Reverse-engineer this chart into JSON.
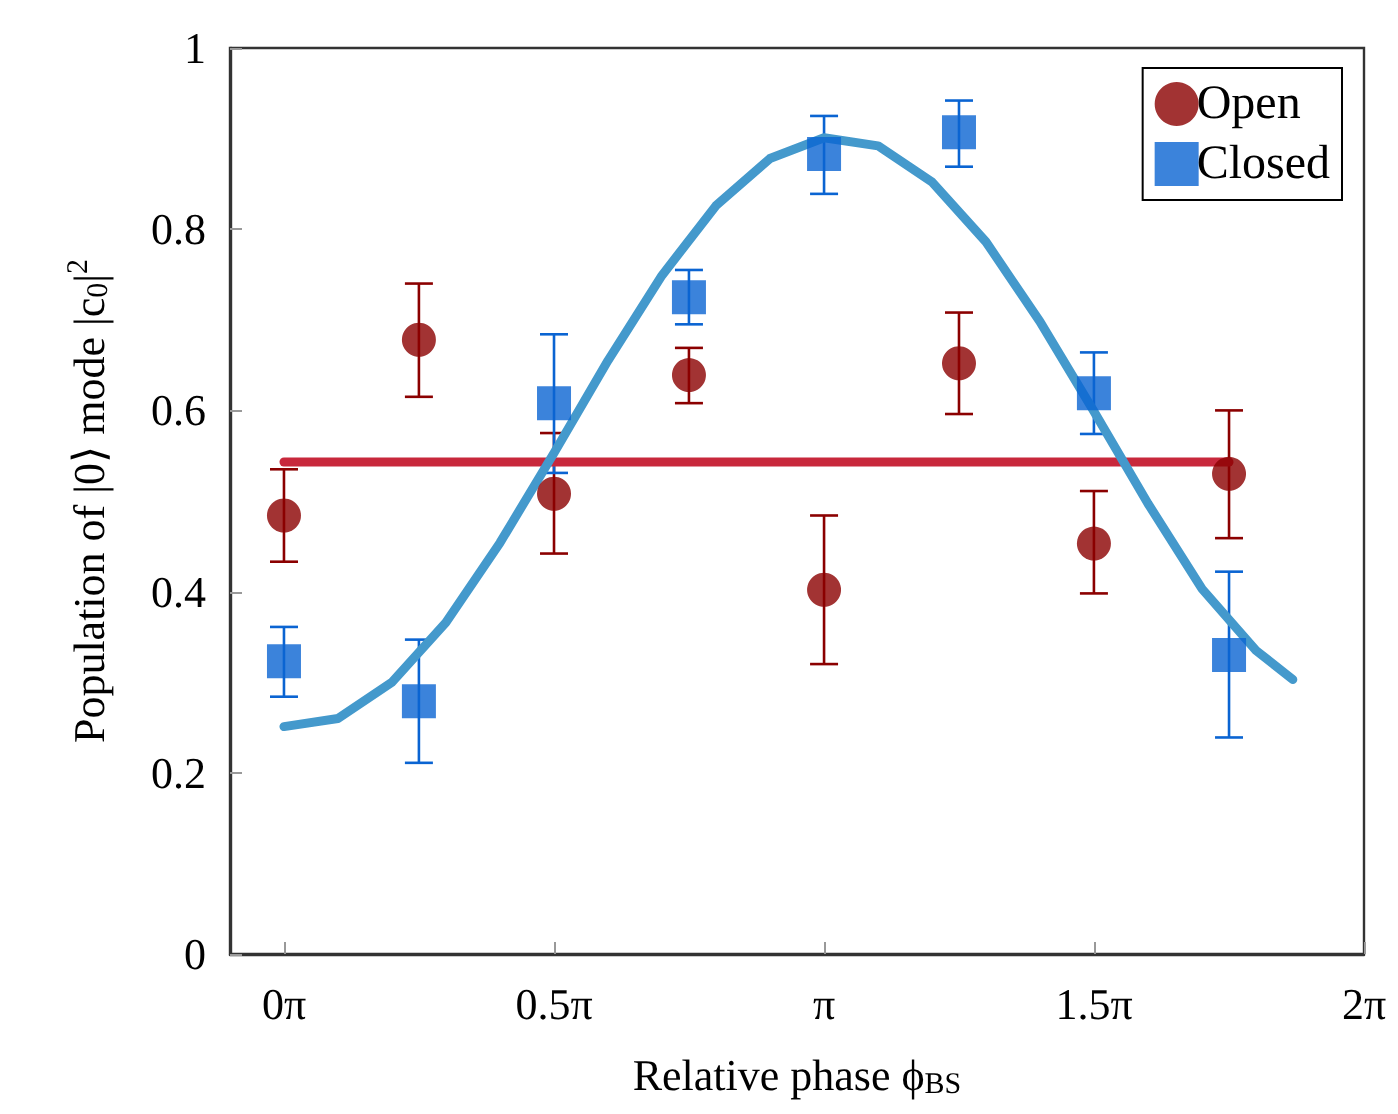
{
  "chart_data": {
    "type": "scatter",
    "xlabel": "Relative phase ϕ$_{BS}$",
    "ylabel": "Population of |0⟩ mode |c$_{0}$|$^{2}$",
    "x": [
      0,
      0.785,
      1.571,
      2.356,
      3.142,
      3.927,
      4.712,
      5.498
    ],
    "xlim": [
      -0.314,
      6.2832
    ],
    "xticks": [
      {
        "value": 0,
        "label": "0π"
      },
      {
        "value": 1.5708,
        "label": "0.5π"
      },
      {
        "value": 3.1416,
        "label": "π"
      },
      {
        "value": 4.7124,
        "label": "1.5π"
      },
      {
        "value": 6.2832,
        "label": "2π"
      }
    ],
    "ylim": [
      0,
      1
    ],
    "yticks": [
      0,
      0.2,
      0.4,
      0.6,
      0.8,
      1
    ],
    "grid": false,
    "legend": "top right",
    "series": [
      {
        "name": "Open",
        "color": "#8b0000",
        "marker": "circle",
        "values": [
          0.484,
          0.678,
          0.508,
          0.639,
          0.402,
          0.652,
          0.453,
          0.53
        ],
        "errors": [
          [
            0.433,
            0.535
          ],
          [
            0.615,
            0.74
          ],
          [
            0.442,
            0.575
          ],
          [
            0.608,
            0.669
          ],
          [
            0.32,
            0.484
          ],
          [
            0.596,
            0.708
          ],
          [
            0.398,
            0.511
          ],
          [
            0.459,
            0.6
          ]
        ]
      },
      {
        "name": "Closed",
        "color": "#0a64d2",
        "marker": "square",
        "values": [
          0.323,
          0.279,
          0.608,
          0.725,
          0.883,
          0.907,
          0.619,
          0.33
        ],
        "errors": [
          [
            0.284,
            0.361
          ],
          [
            0.211,
            0.347
          ],
          [
            0.531,
            0.684
          ],
          [
            0.695,
            0.755
          ],
          [
            0.839,
            0.925
          ],
          [
            0.869,
            0.942
          ],
          [
            0.574,
            0.664
          ],
          [
            0.239,
            0.422
          ]
        ]
      },
      {
        "type": "line",
        "color": "#c8283c",
        "marker": "none",
        "x": [
          0,
          5.498
        ],
        "values": [
          0.543,
          0.543
        ]
      },
      {
        "type": "line",
        "color": "#4499cc",
        "marker": "none",
        "x": [
          0,
          0.314,
          0.628,
          0.942,
          1.257,
          1.571,
          1.885,
          2.199,
          2.513,
          2.827,
          3.142,
          3.456,
          3.77,
          4.084,
          4.398,
          4.712,
          5.027,
          5.341,
          5.655,
          5.869
        ],
        "values": [
          0.251,
          0.26,
          0.3,
          0.366,
          0.454,
          0.553,
          0.655,
          0.749,
          0.826,
          0.878,
          0.901,
          0.892,
          0.852,
          0.786,
          0.698,
          0.599,
          0.497,
          0.403,
          0.335,
          0.303
        ]
      }
    ]
  }
}
